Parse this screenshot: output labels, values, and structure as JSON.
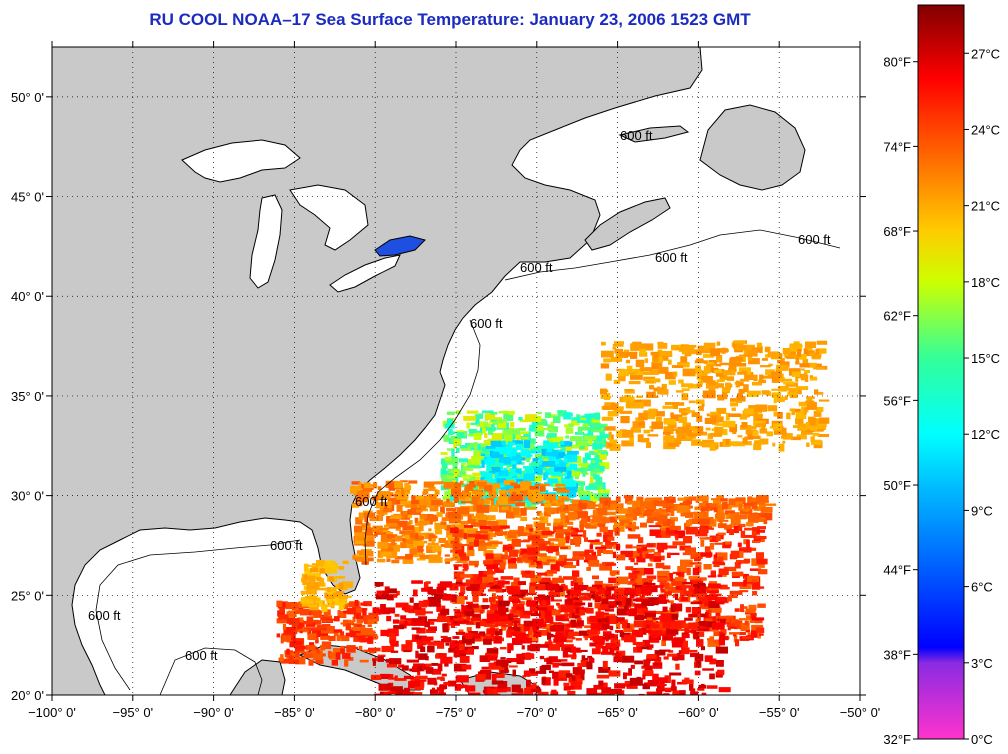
{
  "title": "RU COOL  NOAA–17  Sea Surface Temperature:  January 23, 2006 1523 GMT",
  "map": {
    "lon_range": [
      -100,
      -50
    ],
    "lat_range": [
      20,
      52.5
    ],
    "lon_ticks": [
      {
        "value": -100,
        "label": "−100° 0'"
      },
      {
        "value": -95,
        "label": "−95° 0'"
      },
      {
        "value": -90,
        "label": "−90° 0'"
      },
      {
        "value": -85,
        "label": "−85° 0'"
      },
      {
        "value": -80,
        "label": "−80° 0'"
      },
      {
        "value": -75,
        "label": "−75° 0'"
      },
      {
        "value": -70,
        "label": "−70° 0'"
      },
      {
        "value": -65,
        "label": "−65° 0'"
      },
      {
        "value": -60,
        "label": "−60° 0'"
      },
      {
        "value": -55,
        "label": "−55° 0'"
      },
      {
        "value": -50,
        "label": "−50° 0'"
      }
    ],
    "lat_ticks": [
      {
        "value": 20,
        "label": "20° 0'"
      },
      {
        "value": 25,
        "label": "25° 0'"
      },
      {
        "value": 30,
        "label": "30° 0'"
      },
      {
        "value": 35,
        "label": "35° 0'"
      },
      {
        "value": 40,
        "label": "40° 0'"
      },
      {
        "value": 45,
        "label": "45° 0'"
      },
      {
        "value": 50,
        "label": "50° 0'"
      }
    ],
    "isobath_label": "600 ft",
    "colors": {
      "land": "#c9c9c9",
      "water_nodata": "#ffffff",
      "coast": "#000000"
    }
  },
  "colorbar": {
    "min_c": 0,
    "max_c": 28.9,
    "celsius_labels": [
      "0°C",
      "3°C",
      "6°C",
      "9°C",
      "12°C",
      "15°C",
      "18°C",
      "21°C",
      "24°C",
      "27°C"
    ],
    "celsius_values": [
      0,
      3,
      6,
      9,
      12,
      15,
      18,
      21,
      24,
      27
    ],
    "fahrenheit_labels": [
      "32°F",
      "38°F",
      "44°F",
      "50°F",
      "56°F",
      "62°F",
      "68°F",
      "74°F",
      "80°F"
    ],
    "fahrenheit_values": [
      32,
      38,
      44,
      50,
      56,
      62,
      68,
      74,
      80
    ],
    "stops": [
      {
        "c": 0,
        "color": "#ff33cc"
      },
      {
        "c": 3,
        "color": "#8a2be2"
      },
      {
        "c": 3.6,
        "color": "#0000ff"
      },
      {
        "c": 7,
        "color": "#0066ff"
      },
      {
        "c": 10,
        "color": "#00bfff"
      },
      {
        "c": 12,
        "color": "#00ffff"
      },
      {
        "c": 15,
        "color": "#33ff99"
      },
      {
        "c": 18,
        "color": "#ccff00"
      },
      {
        "c": 20,
        "color": "#ffcc00"
      },
      {
        "c": 23,
        "color": "#ff6600"
      },
      {
        "c": 26,
        "color": "#ff0000"
      },
      {
        "c": 28.9,
        "color": "#800000"
      }
    ]
  }
}
